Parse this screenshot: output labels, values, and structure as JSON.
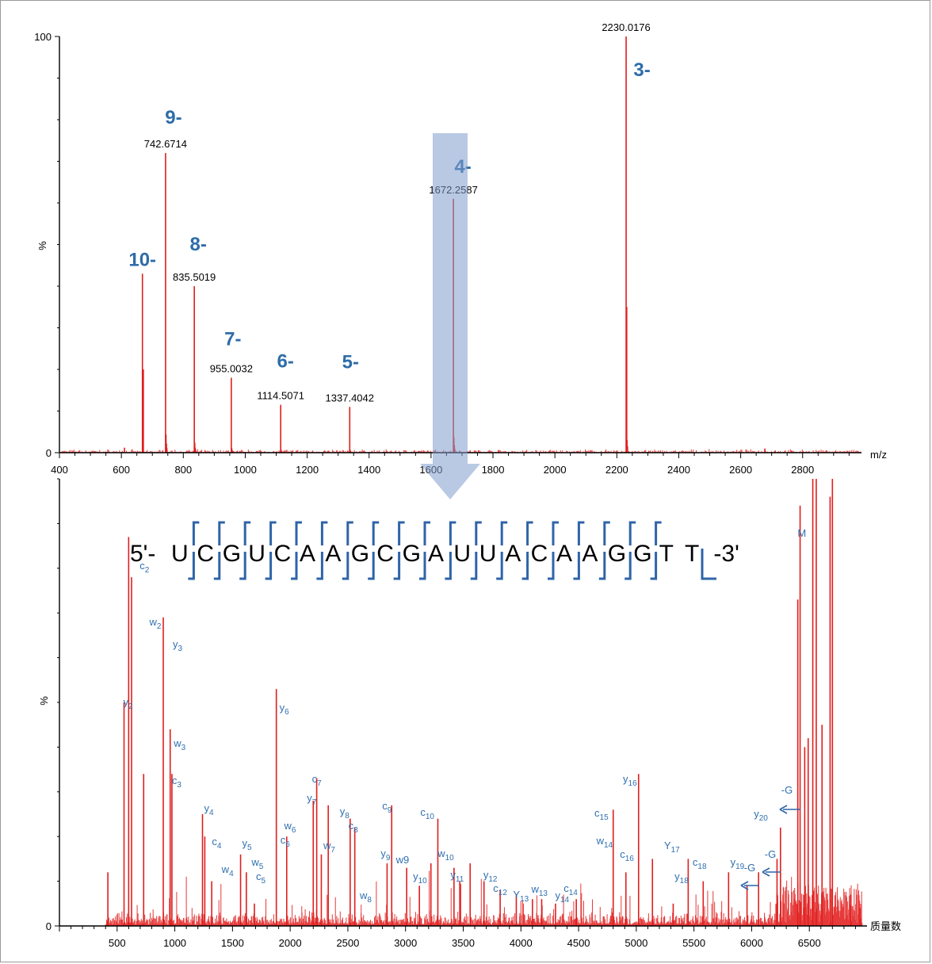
{
  "chart_data": [
    {
      "type": "line",
      "title": "",
      "xlabel": "m/z",
      "ylabel": "%",
      "xlim": [
        400,
        2990
      ],
      "ylim": [
        0,
        100
      ],
      "x_ticks": [
        400,
        600,
        800,
        1000,
        1200,
        1400,
        1600,
        1800,
        2000,
        2200,
        2400,
        2600,
        2800
      ],
      "y_ticks": [
        "0",
        "100"
      ],
      "peaks": [
        {
          "mz": 610,
          "intensity": 1.2
        },
        {
          "mz": 668,
          "intensity": 43
        },
        {
          "mz": 671,
          "intensity": 20
        },
        {
          "mz": 742.6714,
          "intensity": 72,
          "label": "742.6714"
        },
        {
          "mz": 835.5019,
          "intensity": 40,
          "label": "835.5019"
        },
        {
          "mz": 955.0032,
          "intensity": 18,
          "label": "955.0032"
        },
        {
          "mz": 1114.5071,
          "intensity": 11.5,
          "label": "1114.5071"
        },
        {
          "mz": 1337.4042,
          "intensity": 11,
          "label": "1337.4042"
        },
        {
          "mz": 1672.2587,
          "intensity": 61,
          "label": "1672.2587"
        },
        {
          "mz": 2230.0176,
          "intensity": 100,
          "label": "2230.0176"
        },
        {
          "mz": 2232,
          "intensity": 35
        },
        {
          "mz": 2678,
          "intensity": 1
        }
      ],
      "charge_labels": [
        {
          "text": "10-",
          "mz": 668
        },
        {
          "text": "9-",
          "mz": 742.6714
        },
        {
          "text": "8-",
          "mz": 835.5019
        },
        {
          "text": "7-",
          "mz": 955.0032
        },
        {
          "text": "6-",
          "mz": 1114.5071
        },
        {
          "text": "5-",
          "mz": 1337.4042
        },
        {
          "text": "4-",
          "mz": 1672.2587
        },
        {
          "text": "3-",
          "mz": 2230.0176
        }
      ]
    },
    {
      "type": "line",
      "title": "",
      "xlabel": "质量数",
      "ylabel": "%",
      "xlim": [
        0,
        7000
      ],
      "ylim": [
        0,
        100
      ],
      "x_ticks": [
        500,
        1000,
        1500,
        2000,
        2500,
        3000,
        3500,
        4000,
        4500,
        5000,
        5500,
        6000,
        6500
      ],
      "y_ticks": [
        "0"
      ],
      "sequence": [
        "5'-",
        "U",
        "C",
        "G",
        "U",
        "C",
        "A",
        "A",
        "G",
        "C",
        "G",
        "A",
        "U",
        "U",
        "A",
        "C",
        "A",
        "A",
        "G",
        "G",
        "T",
        "T",
        "-3'"
      ],
      "peaks": [
        {
          "mass": 420,
          "intensity": 12
        },
        {
          "mass": 560,
          "intensity": 50
        },
        {
          "mass": 600,
          "intensity": 87
        },
        {
          "mass": 625,
          "intensity": 78
        },
        {
          "mass": 730,
          "intensity": 34
        },
        {
          "mass": 900,
          "intensity": 69
        },
        {
          "mass": 960,
          "intensity": 44
        },
        {
          "mass": 975,
          "intensity": 34
        },
        {
          "mass": 1240,
          "intensity": 25
        },
        {
          "mass": 1260,
          "intensity": 20
        },
        {
          "mass": 1320,
          "intensity": 10
        },
        {
          "mass": 1570,
          "intensity": 16
        },
        {
          "mass": 1620,
          "intensity": 12
        },
        {
          "mass": 1690,
          "intensity": 5
        },
        {
          "mass": 1880,
          "intensity": 53
        },
        {
          "mass": 1970,
          "intensity": 20
        },
        {
          "mass": 2200,
          "intensity": 28
        },
        {
          "mass": 2230,
          "intensity": 33
        },
        {
          "mass": 2270,
          "intensity": 16
        },
        {
          "mass": 2330,
          "intensity": 27
        },
        {
          "mass": 2520,
          "intensity": 24
        },
        {
          "mass": 2560,
          "intensity": 22
        },
        {
          "mass": 2840,
          "intensity": 14
        },
        {
          "mass": 2880,
          "intensity": 27
        },
        {
          "mass": 3010,
          "intensity": 13
        },
        {
          "mass": 3120,
          "intensity": 9
        },
        {
          "mass": 3220,
          "intensity": 14
        },
        {
          "mass": 3280,
          "intensity": 24
        },
        {
          "mass": 3420,
          "intensity": 13
        },
        {
          "mass": 3470,
          "intensity": 10
        },
        {
          "mass": 3560,
          "intensity": 14
        },
        {
          "mass": 3680,
          "intensity": 10
        },
        {
          "mass": 3820,
          "intensity": 8
        },
        {
          "mass": 3960,
          "intensity": 7
        },
        {
          "mass": 4100,
          "intensity": 6
        },
        {
          "mass": 4180,
          "intensity": 6
        },
        {
          "mass": 4300,
          "intensity": 5
        },
        {
          "mass": 4480,
          "intensity": 6
        },
        {
          "mass": 4800,
          "intensity": 26
        },
        {
          "mass": 4910,
          "intensity": 12
        },
        {
          "mass": 5020,
          "intensity": 34
        },
        {
          "mass": 5140,
          "intensity": 15
        },
        {
          "mass": 5320,
          "intensity": 5
        },
        {
          "mass": 5450,
          "intensity": 15
        },
        {
          "mass": 5580,
          "intensity": 10
        },
        {
          "mass": 5800,
          "intensity": 12
        },
        {
          "mass": 5960,
          "intensity": 9
        },
        {
          "mass": 6060,
          "intensity": 12
        },
        {
          "mass": 6220,
          "intensity": 15
        },
        {
          "mass": 6250,
          "intensity": 22
        },
        {
          "mass": 6400,
          "intensity": 73
        },
        {
          "mass": 6420,
          "intensity": 94
        },
        {
          "mass": 6460,
          "intensity": 40
        },
        {
          "mass": 6490,
          "intensity": 42
        },
        {
          "mass": 6530,
          "intensity": 100
        },
        {
          "mass": 6560,
          "intensity": 100
        },
        {
          "mass": 6610,
          "intensity": 45
        },
        {
          "mass": 6680,
          "intensity": 96
        },
        {
          "mass": 6700,
          "intensity": 100
        },
        {
          "mass": 6860,
          "intensity": 7
        },
        {
          "mass": 6940,
          "intensity": 4
        }
      ],
      "fragment_labels": [
        {
          "ion": "c",
          "sub": "2",
          "mass": 600
        },
        {
          "ion": "w",
          "sub": "2",
          "mass": 625
        },
        {
          "ion": "y",
          "sub": "3",
          "mass": 900
        },
        {
          "ion": "y",
          "sub": "2",
          "mass": 560
        },
        {
          "ion": "w",
          "sub": "3",
          "mass": 960
        },
        {
          "ion": "c",
          "sub": "3",
          "mass": 975
        },
        {
          "ion": "y",
          "sub": "4",
          "mass": 1240
        },
        {
          "ion": "c",
          "sub": "4",
          "mass": 1260
        },
        {
          "ion": "w",
          "sub": "4",
          "mass": 1320
        },
        {
          "ion": "y",
          "sub": "5",
          "mass": 1570
        },
        {
          "ion": "w",
          "sub": "5",
          "mass": 1620
        },
        {
          "ion": "c",
          "sub": "5",
          "mass": 1690
        },
        {
          "ion": "y",
          "sub": "6",
          "mass": 1880
        },
        {
          "ion": "c",
          "sub": "6",
          "mass": 1970
        },
        {
          "ion": "w",
          "sub": "6",
          "mass": 2040
        },
        {
          "ion": "y",
          "sub": "7",
          "mass": 2200
        },
        {
          "ion": "c",
          "sub": "7",
          "mass": 2230
        },
        {
          "ion": "w",
          "sub": "7",
          "mass": 2270
        },
        {
          "ion": "y",
          "sub": "8",
          "mass": 2520
        },
        {
          "ion": "c",
          "sub": "8",
          "mass": 2560
        },
        {
          "ion": "w",
          "sub": "8",
          "mass": 2600
        },
        {
          "ion": "c",
          "sub": "9",
          "mass": 2880
        },
        {
          "ion": "y",
          "sub": "9",
          "mass": 2840
        },
        {
          "ion": "w9",
          "sub": "",
          "mass": 2960
        },
        {
          "ion": "c",
          "sub": "10",
          "mass": 3120
        },
        {
          "ion": "y",
          "sub": "10",
          "mass": 3070
        },
        {
          "ion": "w",
          "sub": "10",
          "mass": 3280
        },
        {
          "ion": "y",
          "sub": "11",
          "mass": 3420
        },
        {
          "ion": "y",
          "sub": "12",
          "mass": 3680
        },
        {
          "ion": "c",
          "sub": "12",
          "mass": 3820
        },
        {
          "ion": "Y",
          "sub": "13",
          "mass": 4000
        },
        {
          "ion": "w",
          "sub": "13",
          "mass": 4120
        },
        {
          "ion": "y",
          "sub": "14",
          "mass": 4330
        },
        {
          "ion": "c",
          "sub": "14",
          "mass": 4390
        },
        {
          "ion": "c",
          "sub": "15",
          "mass": 4780
        },
        {
          "ion": "w",
          "sub": "14",
          "mass": 4780
        },
        {
          "ion": "y",
          "sub": "16",
          "mass": 5000
        },
        {
          "ion": "c",
          "sub": "16",
          "mass": 4960
        },
        {
          "ion": "Y",
          "sub": "17",
          "mass": 5240
        },
        {
          "ion": "c",
          "sub": "18",
          "mass": 5480
        },
        {
          "ion": "y",
          "sub": "18",
          "mass": 5420
        },
        {
          "ion": "y",
          "sub": "19",
          "mass": 5780
        },
        {
          "ion": "y",
          "sub": "20",
          "mass": 6080
        },
        {
          "ion": "M",
          "sub": "",
          "mass": 6380
        }
      ],
      "annotations": [
        {
          "text": "-G",
          "mass": 6300
        },
        {
          "text": "-G",
          "mass": 6200
        },
        {
          "text": "-G",
          "mass": 6020
        }
      ]
    }
  ]
}
